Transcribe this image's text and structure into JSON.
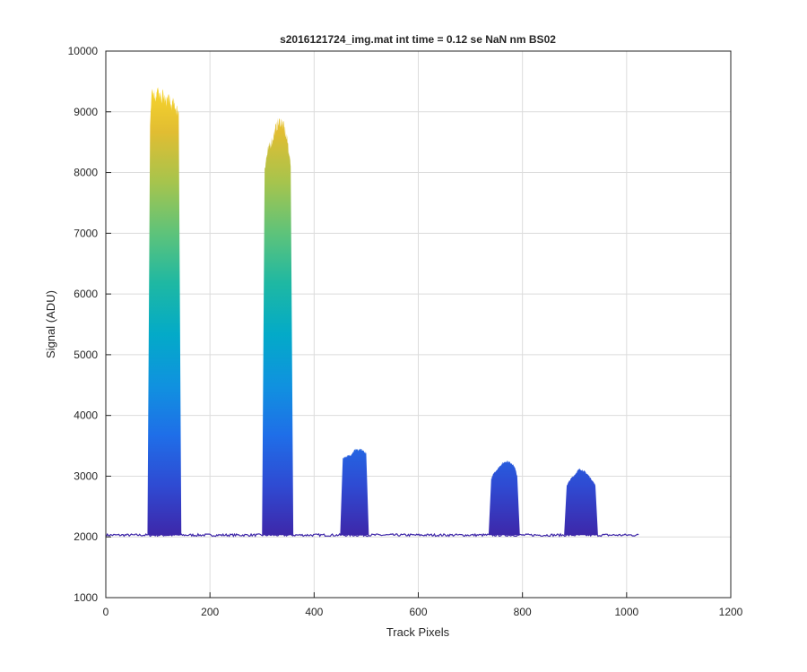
{
  "chart_data": {
    "type": "line",
    "title": "s2016121724_img.mat int time = 0.12 se  NaN nm BS02",
    "xlabel": "Track Pixels",
    "ylabel": "Signal (ADU)",
    "xlim": [
      0,
      1200
    ],
    "ylim": [
      1000,
      10000
    ],
    "x_ticks": [
      0,
      200,
      400,
      600,
      800,
      1000,
      1200
    ],
    "y_ticks": [
      1000,
      2000,
      3000,
      4000,
      5000,
      6000,
      7000,
      8000,
      9000,
      10000
    ],
    "grid": true,
    "x_range_of_data": [
      1,
      1024
    ],
    "baseline_signal": 2030,
    "colormap": [
      "#3e26a8",
      "#2f4ad2",
      "#1f6ee8",
      "#1092df",
      "#03aac8",
      "#1eb8a3",
      "#5ec37a",
      "#a6c44d",
      "#e1bd32",
      "#fbd82a"
    ],
    "series": [
      {
        "x": [
          80,
          85,
          88,
          95,
          100,
          105,
          110,
          115,
          120,
          125,
          130,
          135,
          140,
          145
        ],
        "y": [
          2050,
          8800,
          9400,
          9250,
          9350,
          9200,
          9300,
          9150,
          9250,
          9100,
          9150,
          9050,
          9000,
          2050
        ]
      },
      {
        "x": [
          300,
          305,
          310,
          315,
          320,
          325,
          330,
          335,
          340,
          345,
          350,
          355,
          360
        ],
        "y": [
          2050,
          8100,
          8300,
          8450,
          8550,
          8700,
          8800,
          8850,
          8800,
          8650,
          8450,
          8100,
          2050
        ]
      },
      {
        "x": [
          450,
          455,
          460,
          465,
          470,
          475,
          480,
          485,
          490,
          495,
          500,
          505
        ],
        "y": [
          2030,
          3300,
          3320,
          3330,
          3350,
          3400,
          3450,
          3420,
          3440,
          3410,
          3380,
          2030
        ]
      },
      {
        "x": [
          735,
          740,
          745,
          750,
          755,
          760,
          765,
          770,
          775,
          780,
          785,
          790,
          795
        ],
        "y": [
          2030,
          2950,
          3050,
          3100,
          3150,
          3200,
          3230,
          3250,
          3230,
          3210,
          3150,
          3000,
          2030
        ]
      },
      {
        "x": [
          880,
          885,
          890,
          895,
          900,
          905,
          910,
          915,
          920,
          925,
          930,
          935,
          940,
          945
        ],
        "y": [
          2030,
          2850,
          2920,
          2980,
          3020,
          3080,
          3120,
          3100,
          3070,
          3030,
          2980,
          2920,
          2850,
          2030
        ]
      }
    ]
  }
}
